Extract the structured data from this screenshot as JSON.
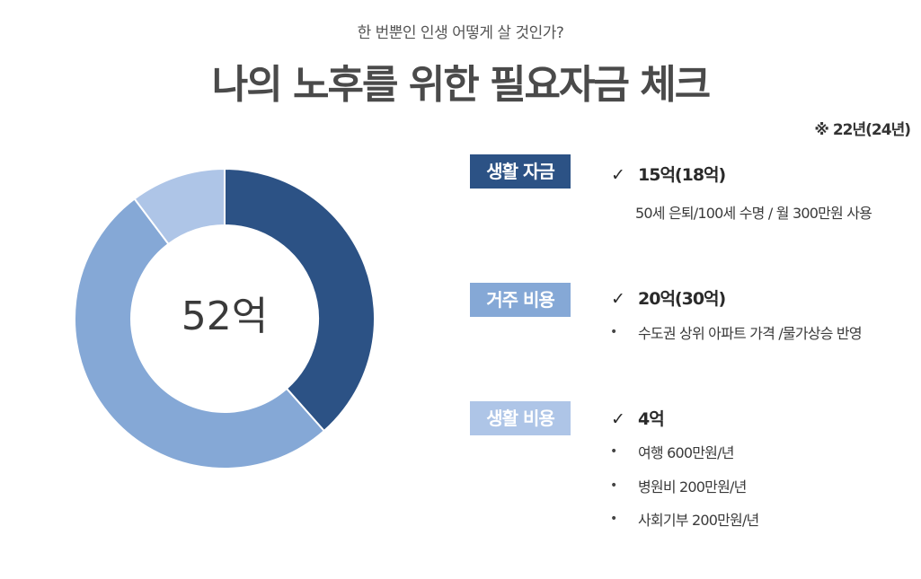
{
  "header": {
    "subtitle": "한 번뿐인 인생 어떻게 살 것인가?",
    "title": "나의 노후를 위한 필요자금 체크",
    "note": "※ 22년(24년)"
  },
  "chart_data": {
    "type": "pie",
    "center_label": "52억",
    "colors": [
      "#2c5285",
      "#85a8d6",
      "#aec5e7"
    ],
    "categories": [
      "생활 자금",
      "거주 비용",
      "생활 비용"
    ],
    "values": [
      15,
      20,
      4
    ],
    "start_angle_deg": 0
  },
  "items": [
    {
      "badge": "생활 자금",
      "check": "✓",
      "headline": "15억(18억)",
      "details": [
        "50세 은퇴/100세 수명 / 월 300만원 사용"
      ]
    },
    {
      "badge": "거주 비용",
      "check": "✓",
      "headline": "20억(30억)",
      "bullet": "•",
      "details": [
        "수도권 상위 아파트 가격 /물가상승 반영"
      ]
    },
    {
      "badge": "생활 비용",
      "check": "✓",
      "headline": "4억",
      "bullet": "•",
      "details": [
        "여행 600만원/년",
        "병원비 200만원/년",
        "사회기부 200만원/년"
      ]
    }
  ]
}
